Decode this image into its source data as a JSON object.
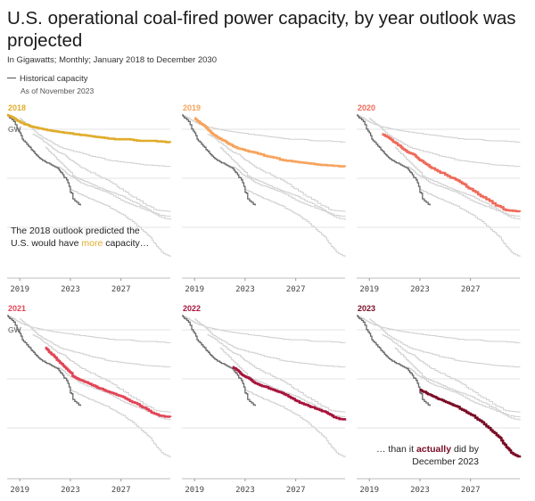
{
  "title": "U.S. operational coal-fired power capacity, by year outlook was projected",
  "subtitle": "In Gigawatts; Monthly; January 2018 to December 2030",
  "legend": {
    "historical_label": "Historical capacity",
    "historical_note": "As of November 2023"
  },
  "colors": {
    "2018": "#e0ac2b",
    "2019": "#f7a35c",
    "2020": "#ef6a5a",
    "2021": "#e34556",
    "2022": "#a8143c",
    "2023": "#7a0c25",
    "context": "#cfcfcf",
    "historical": "#666666",
    "grid": "#e3e3e3"
  },
  "annotations": {
    "left_line1": "The 2018 outlook predicted the",
    "left_line2_a": "U.S. would have ",
    "left_line2_highlight": "more",
    "left_line2_b": " capacity…",
    "right_line1_a": "… than it ",
    "right_line1_highlight": "actually",
    "right_line1_b": " did by",
    "right_line2": "December 2023"
  },
  "chart_data": {
    "type": "line",
    "xlim": [
      2018,
      2030.9
    ],
    "x_ticks": [
      "2019",
      "2023",
      "2027"
    ],
    "x_tick_values": [
      2019,
      2023,
      2027
    ],
    "y_tick_labels": [
      "GW"
    ],
    "gridline_count": 3,
    "panel_years": [
      "2018",
      "2019",
      "2020",
      "2021",
      "2022",
      "2023"
    ],
    "historical": {
      "name": "Historical capacity",
      "x": [
        2018.0,
        2018.4,
        2018.9,
        2019.3,
        2019.8,
        2020.2,
        2020.6,
        2021.0,
        2021.5,
        2022.0,
        2022.4,
        2022.8,
        2023.2,
        2023.8
      ],
      "y": [
        100,
        97,
        90,
        84,
        80,
        76,
        73,
        71,
        69,
        67,
        63,
        58,
        48,
        44
      ]
    },
    "series": [
      {
        "name": "2018",
        "x": [
          2018.0,
          2018.3,
          2018.7,
          2019.2,
          2019.8,
          2020.4,
          2021.0,
          2021.7,
          2022.5,
          2023.5,
          2024.5,
          2025.5,
          2026.5,
          2027.5,
          2028.5,
          2029.5,
          2030.9
        ],
        "y": [
          100,
          99,
          97,
          95,
          93,
          92,
          91,
          90,
          89,
          88,
          87,
          86,
          85,
          85,
          84,
          84,
          83
        ]
      },
      {
        "name": "2019",
        "x": [
          2019.0,
          2019.3,
          2019.8,
          2020.3,
          2020.8,
          2021.5,
          2022.2,
          2023.0,
          2024.0,
          2025.0,
          2026.0,
          2027.0,
          2028.0,
          2029.0,
          2030.9
        ],
        "y": [
          98,
          96,
          93,
          89,
          86,
          83,
          80,
          78,
          76,
          74,
          72,
          71,
          70,
          69,
          68
        ]
      },
      {
        "name": "2020",
        "x": [
          2020.0,
          2020.5,
          2021.0,
          2021.5,
          2022.0,
          2022.6,
          2023.0,
          2023.6,
          2024.2,
          2025.0,
          2025.8,
          2026.5,
          2027.2,
          2028.0,
          2029.0,
          2029.8,
          2030.9
        ],
        "y": [
          88,
          86,
          83,
          80,
          77,
          75,
          72,
          69,
          66,
          63,
          60,
          57,
          53,
          49,
          44,
          41,
          40
        ]
      },
      {
        "name": "2021",
        "x": [
          2021.0,
          2021.4,
          2021.8,
          2022.3,
          2022.8,
          2023.3,
          2023.8,
          2024.4,
          2025.0,
          2025.6,
          2026.3,
          2027.0,
          2027.7,
          2028.5,
          2029.2,
          2030.0,
          2030.9
        ],
        "y": [
          80,
          77,
          74,
          70,
          66,
          62,
          60,
          58,
          56,
          54,
          52,
          50,
          47,
          44,
          41,
          38,
          37
        ]
      },
      {
        "name": "2022",
        "x": [
          2022.0,
          2022.4,
          2022.8,
          2023.3,
          2023.8,
          2024.5,
          2025.2,
          2025.9,
          2026.6,
          2027.3,
          2028.0,
          2028.7,
          2029.4,
          2030.0,
          2030.9
        ],
        "y": [
          68,
          66,
          63,
          61,
          58,
          56,
          54,
          52,
          49,
          46,
          44,
          42,
          40,
          37,
          35
        ]
      },
      {
        "name": "2023",
        "x": [
          2023.0,
          2023.5,
          2024.0,
          2024.6,
          2025.2,
          2025.8,
          2026.5,
          2027.2,
          2027.9,
          2028.6,
          2029.2,
          2029.7,
          2030.2,
          2030.9
        ],
        "y": [
          54,
          52,
          50,
          48,
          46,
          44,
          41,
          38,
          34,
          29,
          25,
          20,
          15,
          12
        ]
      }
    ]
  }
}
